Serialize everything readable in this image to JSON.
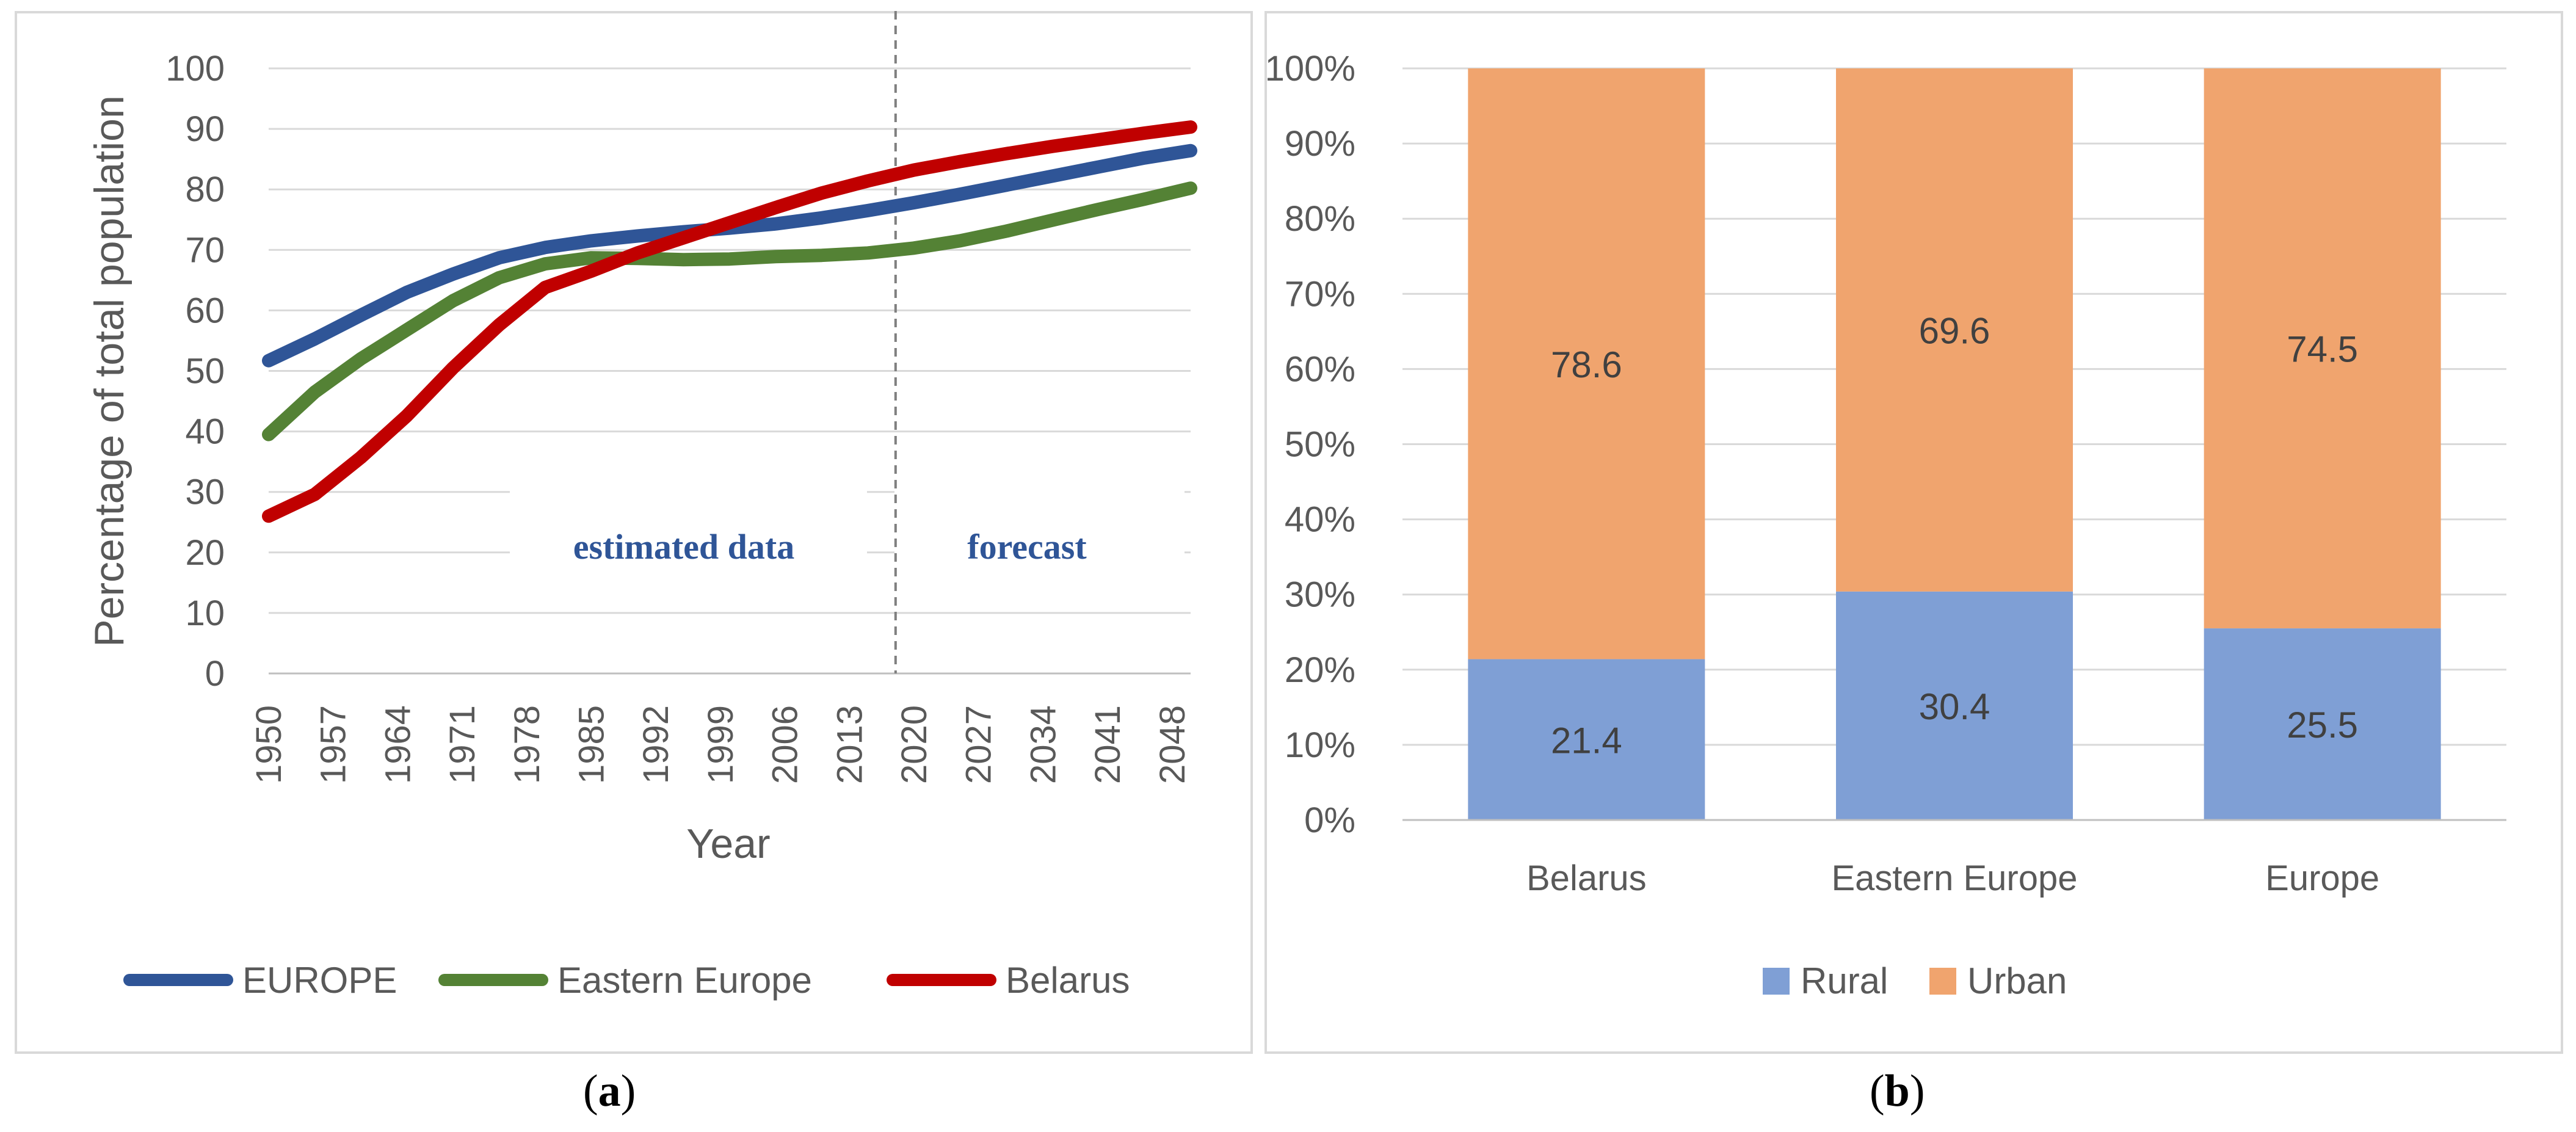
{
  "captions": {
    "a": "a",
    "b": "b"
  },
  "chart_data": [
    {
      "type": "line",
      "title": "",
      "xlabel": "Year",
      "ylabel": "Percentage of total population",
      "ylim": [
        0,
        100
      ],
      "yticks": [
        "0",
        "10",
        "20",
        "30",
        "40",
        "50",
        "60",
        "70",
        "80",
        "90",
        "100"
      ],
      "xticks": [
        "1950",
        "1957",
        "1964",
        "1971",
        "1978",
        "1985",
        "1992",
        "1999",
        "2006",
        "2013",
        "2020",
        "2027",
        "2034",
        "2041",
        "2048"
      ],
      "xlim": [
        1950,
        2050
      ],
      "divider_year": 2018,
      "annotations": {
        "left": "estimated data",
        "right": "forecast"
      },
      "x": [
        1950,
        1955,
        1960,
        1965,
        1970,
        1975,
        1980,
        1985,
        1990,
        1995,
        2000,
        2005,
        2010,
        2015,
        2020,
        2025,
        2030,
        2035,
        2040,
        2045,
        2050
      ],
      "series": [
        {
          "name": "EUROPE",
          "color": "#2f5597",
          "values": [
            51.7,
            55.3,
            59.2,
            63.0,
            66.0,
            68.7,
            70.4,
            71.5,
            72.3,
            73.0,
            73.6,
            74.3,
            75.3,
            76.5,
            77.8,
            79.2,
            80.7,
            82.2,
            83.7,
            85.2,
            86.4
          ]
        },
        {
          "name": "Eastern Europe",
          "color": "#548235",
          "values": [
            39.5,
            46.5,
            52.0,
            56.8,
            61.6,
            65.4,
            67.7,
            68.7,
            68.6,
            68.4,
            68.5,
            68.9,
            69.1,
            69.5,
            70.3,
            71.5,
            73.1,
            74.9,
            76.7,
            78.4,
            80.2
          ]
        },
        {
          "name": "Belarus",
          "color": "#c00000",
          "values": [
            26.0,
            29.6,
            35.7,
            42.6,
            50.5,
            57.6,
            63.8,
            66.5,
            69.5,
            72.0,
            74.5,
            77.0,
            79.4,
            81.4,
            83.2,
            84.6,
            85.9,
            87.1,
            88.2,
            89.3,
            90.3
          ]
        }
      ],
      "legend_position": "bottom"
    },
    {
      "type": "bar",
      "stacked": "percent",
      "title": "",
      "categories": [
        "Belarus",
        "Eastern Europe",
        "Europe"
      ],
      "ylim": [
        0,
        100
      ],
      "yticks": [
        "0%",
        "10%",
        "20%",
        "30%",
        "40%",
        "50%",
        "60%",
        "70%",
        "80%",
        "90%",
        "100%"
      ],
      "series": [
        {
          "name": "Rural",
          "color": "#7f9fd5",
          "values": [
            21.4,
            30.4,
            25.5
          ],
          "labels": [
            "21.4",
            "30.4",
            "25.5"
          ]
        },
        {
          "name": "Urban",
          "color": "#f0a46e",
          "values": [
            78.6,
            69.6,
            74.5
          ],
          "labels": [
            "78.6",
            "69.6",
            "74.5"
          ]
        }
      ],
      "legend_position": "bottom"
    }
  ]
}
